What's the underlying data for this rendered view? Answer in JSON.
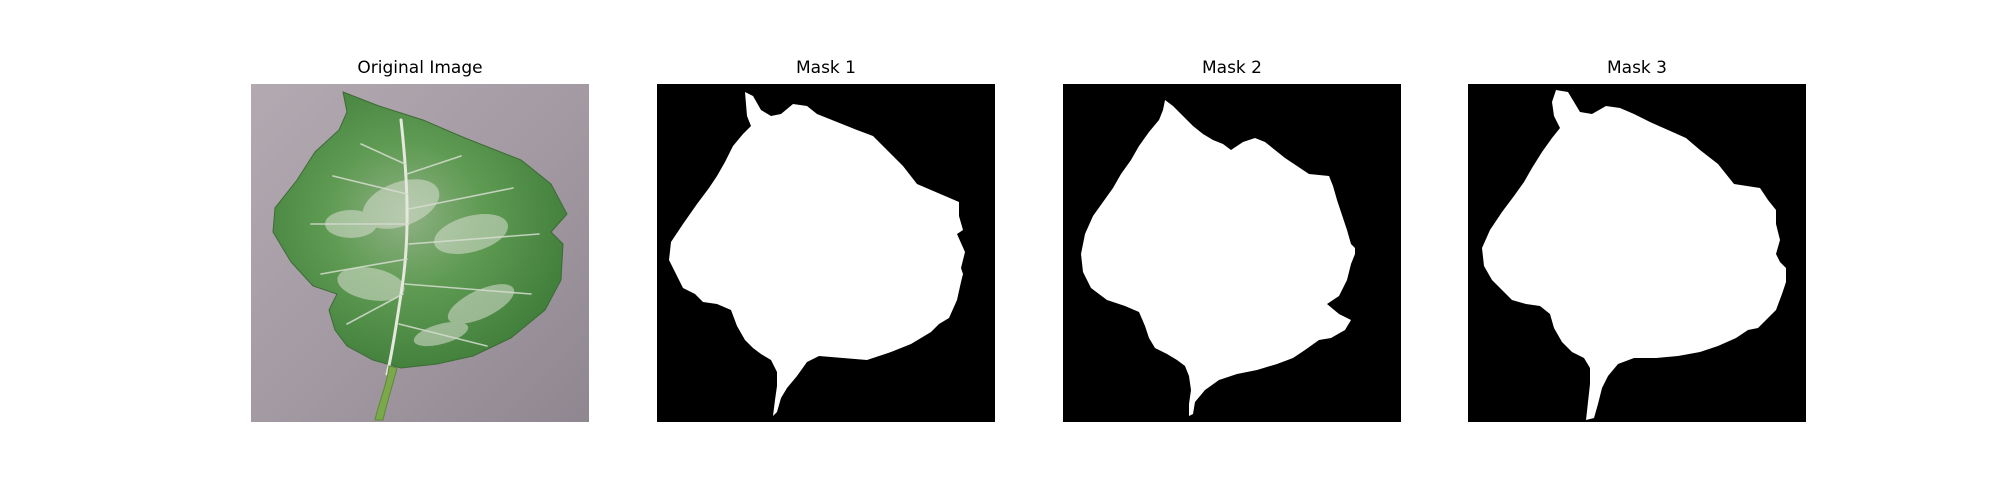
{
  "figure": {
    "panels": [
      {
        "title": "Original Image",
        "kind": "photo",
        "subject": "leaf"
      },
      {
        "title": "Mask 1",
        "kind": "mask"
      },
      {
        "title": "Mask 2",
        "kind": "mask"
      },
      {
        "title": "Mask 3",
        "kind": "mask"
      }
    ]
  },
  "colors": {
    "background": "#ffffff",
    "mask_background": "#000000",
    "mask_foreground": "#ffffff",
    "photo_background": "#a89ea6",
    "leaf_green": "#4f8f45",
    "leaf_highlight": "#cfd8c8",
    "stem": "#7aa84a"
  }
}
